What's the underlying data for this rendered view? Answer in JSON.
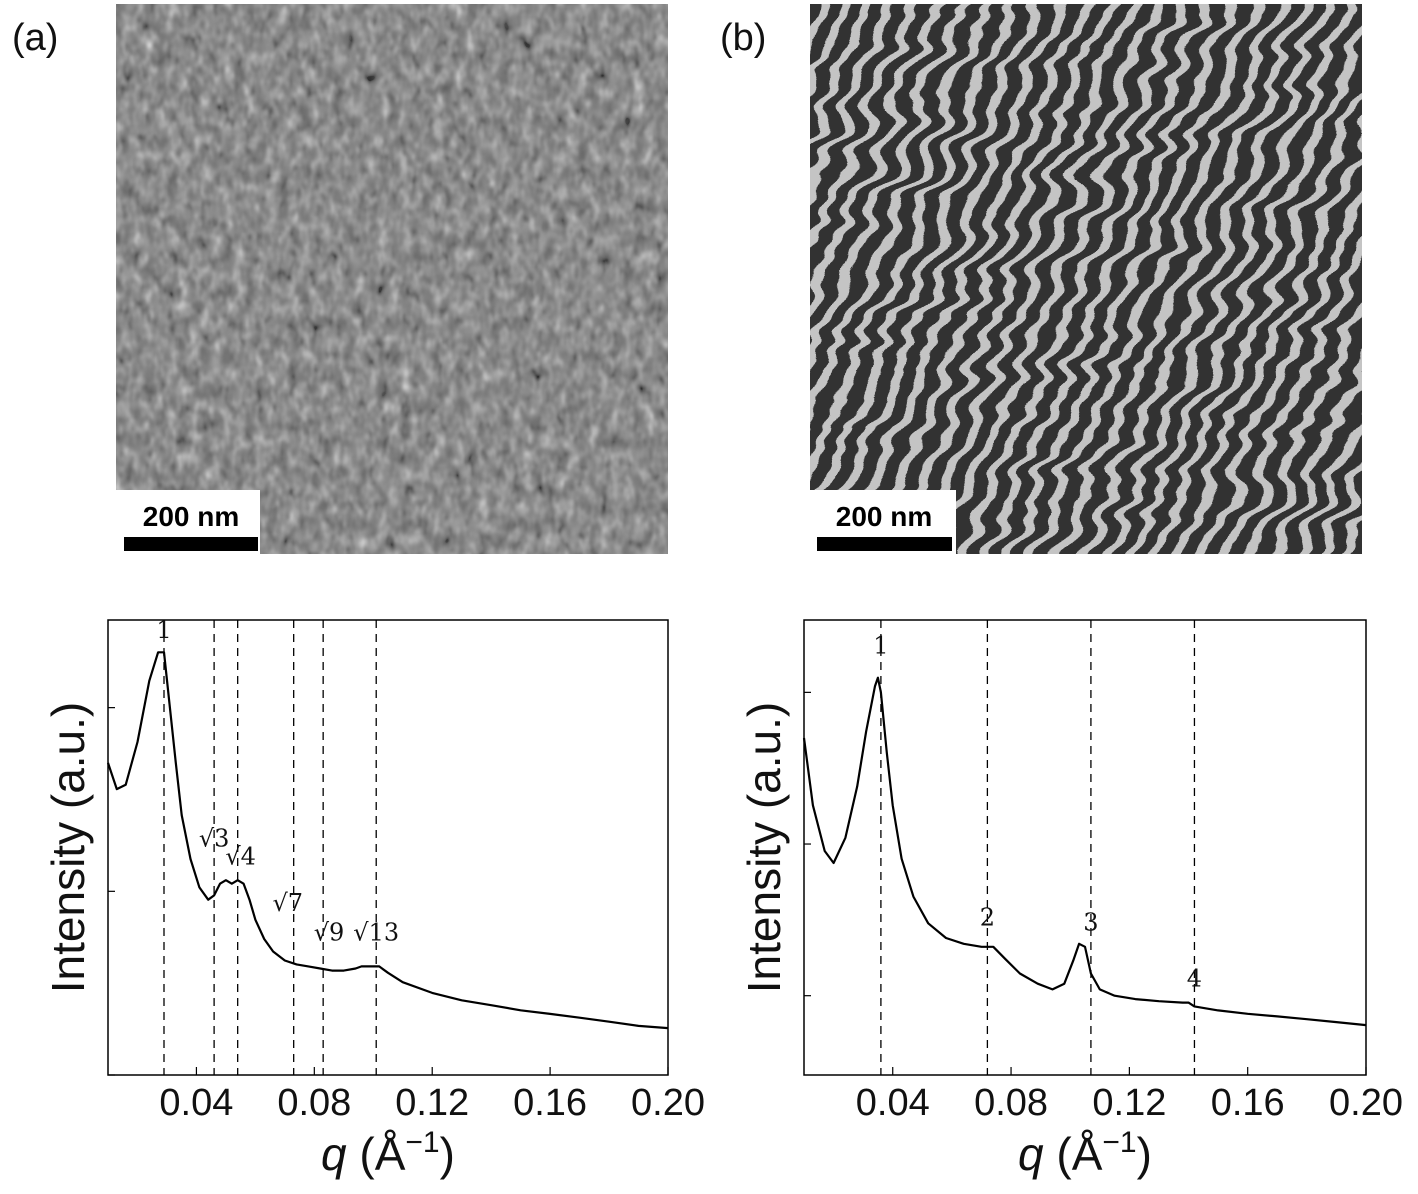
{
  "panels": [
    {
      "letter": "(a)",
      "scalebar": "200 nm",
      "micrograph": "hexagonal-cylinder-pattern"
    },
    {
      "letter": "(b)",
      "scalebar": "200 nm",
      "micrograph": "lamellar-stripe-pattern"
    }
  ],
  "chart_data": [
    {
      "type": "line",
      "xlabel_var": "q",
      "xlabel_unit": " (Å",
      "xlabel_exp": "−1",
      "xlabel_close": ")",
      "ylabel": "Intensity (a.u.)",
      "y_scale": "log",
      "xlim": [
        0.01,
        0.2
      ],
      "ylim": [
        0.1,
        30
      ],
      "x_ticks": [
        0.04,
        0.08,
        0.12,
        0.16,
        0.2
      ],
      "x_tick_labels": [
        "0.04",
        "0.08",
        "0.12",
        "0.16",
        "0.20"
      ],
      "grid": false,
      "series": [
        {
          "x": [
            0.01,
            0.013,
            0.016,
            0.02,
            0.024,
            0.027,
            0.029,
            0.031,
            0.033,
            0.035,
            0.038,
            0.041,
            0.044,
            0.046,
            0.048,
            0.05,
            0.052,
            0.054,
            0.056,
            0.058,
            0.06,
            0.063,
            0.066,
            0.07,
            0.074,
            0.078,
            0.082,
            0.086,
            0.09,
            0.094,
            0.096,
            0.099,
            0.102,
            0.105,
            0.11,
            0.12,
            0.13,
            0.14,
            0.15,
            0.16,
            0.17,
            0.18,
            0.19,
            0.2
          ],
          "y": [
            5.0,
            3.6,
            3.8,
            6.5,
            14.0,
            20.0,
            20.0,
            10.0,
            5.0,
            2.6,
            1.5,
            1.05,
            0.9,
            0.95,
            1.1,
            1.15,
            1.1,
            1.15,
            1.1,
            0.9,
            0.7,
            0.55,
            0.47,
            0.42,
            0.4,
            0.39,
            0.38,
            0.37,
            0.37,
            0.38,
            0.39,
            0.39,
            0.39,
            0.36,
            0.32,
            0.28,
            0.255,
            0.24,
            0.225,
            0.215,
            0.205,
            0.195,
            0.185,
            0.18
          ]
        }
      ],
      "peak_lines": [
        0.029,
        0.046,
        0.054,
        0.073,
        0.083,
        0.101
      ],
      "annotations": [
        {
          "text": "1",
          "x": 0.029,
          "y": 24.0
        },
        {
          "text": "√3",
          "x": 0.046,
          "y": 1.75
        },
        {
          "text": "√4",
          "x": 0.055,
          "y": 1.4
        },
        {
          "text": "√7",
          "x": 0.071,
          "y": 0.78
        },
        {
          "text": "√9",
          "x": 0.085,
          "y": 0.54
        },
        {
          "text": "√13",
          "x": 0.101,
          "y": 0.54
        }
      ]
    },
    {
      "type": "line",
      "xlabel_var": "q",
      "xlabel_unit": " (Å",
      "xlabel_exp": "−1",
      "xlabel_close": ")",
      "ylabel": "Intensity (a.u.)",
      "y_scale": "log",
      "xlim": [
        0.01,
        0.2
      ],
      "ylim": [
        0.03,
        30
      ],
      "x_ticks": [
        0.04,
        0.08,
        0.12,
        0.16,
        0.2
      ],
      "x_tick_labels": [
        "0.04",
        "0.08",
        "0.12",
        "0.16",
        "0.20"
      ],
      "grid": false,
      "series": [
        {
          "x": [
            0.01,
            0.013,
            0.017,
            0.02,
            0.024,
            0.028,
            0.031,
            0.034,
            0.035,
            0.036,
            0.038,
            0.04,
            0.043,
            0.047,
            0.052,
            0.058,
            0.064,
            0.07,
            0.074,
            0.078,
            0.083,
            0.089,
            0.094,
            0.098,
            0.101,
            0.103,
            0.105,
            0.107,
            0.11,
            0.115,
            0.122,
            0.13,
            0.138,
            0.14,
            0.142,
            0.15,
            0.16,
            0.17,
            0.18,
            0.19,
            0.2
          ],
          "y": [
            5.0,
            1.8,
            0.9,
            0.75,
            1.1,
            2.4,
            5.5,
            11.0,
            12.5,
            10.0,
            4.0,
            1.8,
            0.8,
            0.45,
            0.3,
            0.24,
            0.22,
            0.21,
            0.21,
            0.175,
            0.14,
            0.12,
            0.11,
            0.12,
            0.17,
            0.22,
            0.21,
            0.14,
            0.11,
            0.1,
            0.095,
            0.092,
            0.09,
            0.09,
            0.085,
            0.08,
            0.076,
            0.073,
            0.07,
            0.067,
            0.064
          ]
        }
      ],
      "peak_lines": [
        0.036,
        0.072,
        0.107,
        0.142
      ],
      "annotations": [
        {
          "text": "1",
          "x": 0.036,
          "y": 18.0
        },
        {
          "text": "2",
          "x": 0.072,
          "y": 0.29
        },
        {
          "text": "3",
          "x": 0.107,
          "y": 0.27
        },
        {
          "text": "4",
          "x": 0.142,
          "y": 0.115
        }
      ]
    }
  ]
}
